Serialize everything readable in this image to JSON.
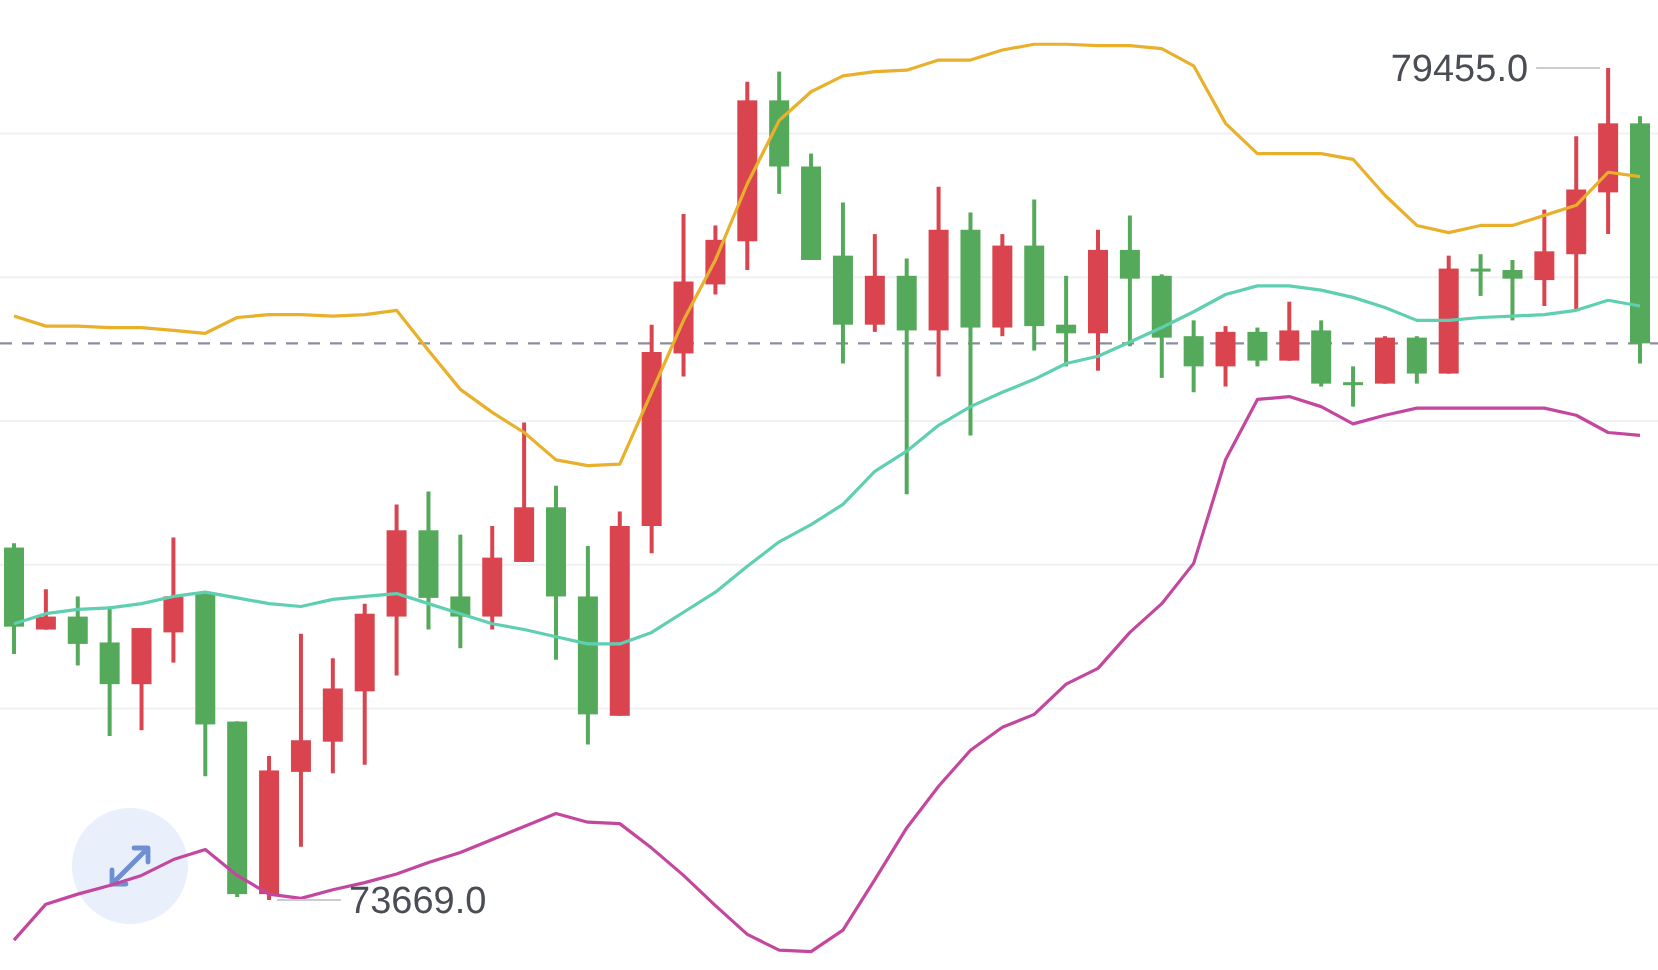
{
  "chart_data": {
    "type": "candlestick",
    "categories": [
      null,
      null,
      null,
      null,
      null,
      null,
      null,
      null,
      null,
      null,
      null,
      null,
      null,
      null,
      null,
      null,
      null,
      null,
      null,
      null,
      null,
      null,
      null,
      null,
      null,
      null,
      null,
      null,
      null,
      null,
      null,
      null,
      null,
      null,
      null,
      null,
      null,
      null,
      null,
      null,
      null,
      null,
      null,
      null,
      null,
      null,
      null,
      null,
      null,
      null,
      null,
      null
    ],
    "ohlc": [
      [
        76120,
        76150,
        75380,
        75570
      ],
      [
        75550,
        75830,
        75550,
        75640
      ],
      [
        75640,
        75780,
        75300,
        75450
      ],
      [
        75460,
        75710,
        74810,
        75170
      ],
      [
        75170,
        75560,
        74850,
        75560
      ],
      [
        75530,
        76190,
        75320,
        75780
      ],
      [
        75800,
        75800,
        74530,
        74890
      ],
      [
        74910,
        74910,
        73690,
        73710
      ],
      [
        73710,
        74670,
        73669,
        74570
      ],
      [
        74560,
        75520,
        74040,
        74780
      ],
      [
        74770,
        75350,
        74550,
        75140
      ],
      [
        75120,
        75730,
        74610,
        75660
      ],
      [
        75640,
        76420,
        75230,
        76240
      ],
      [
        76240,
        76510,
        75550,
        75770
      ],
      [
        75780,
        76210,
        75420,
        75640
      ],
      [
        75640,
        76270,
        75550,
        76050
      ],
      [
        76020,
        76990,
        76020,
        76400
      ],
      [
        76400,
        76550,
        75340,
        75780
      ],
      [
        75780,
        76130,
        74750,
        74960
      ],
      [
        74950,
        76370,
        74950,
        76270
      ],
      [
        76270,
        77670,
        76080,
        77480
      ],
      [
        77470,
        78440,
        77310,
        77970
      ],
      [
        77950,
        78360,
        77880,
        78260
      ],
      [
        78250,
        79360,
        78050,
        79230
      ],
      [
        79230,
        79430,
        78580,
        78770
      ],
      [
        78770,
        78860,
        78120,
        78120
      ],
      [
        78150,
        78520,
        77400,
        77670
      ],
      [
        77670,
        78300,
        77620,
        78010
      ],
      [
        78010,
        78130,
        76490,
        77630
      ],
      [
        77630,
        78630,
        77310,
        78330
      ],
      [
        78330,
        78450,
        76900,
        77650
      ],
      [
        77650,
        78300,
        77590,
        78220
      ],
      [
        78220,
        78540,
        77490,
        77660
      ],
      [
        77670,
        78010,
        77380,
        77610
      ],
      [
        77610,
        78330,
        77350,
        78190
      ],
      [
        78190,
        78430,
        77520,
        77990
      ],
      [
        78010,
        78020,
        77300,
        77580
      ],
      [
        77590,
        77700,
        77200,
        77380
      ],
      [
        77380,
        77660,
        77240,
        77620
      ],
      [
        77620,
        77650,
        77380,
        77420
      ],
      [
        77420,
        77830,
        77420,
        77630
      ],
      [
        77630,
        77700,
        77240,
        77260
      ],
      [
        77270,
        77380,
        77100,
        77260
      ],
      [
        77260,
        77590,
        77260,
        77580
      ],
      [
        77580,
        77590,
        77260,
        77330
      ],
      [
        77330,
        78150,
        77330,
        78060
      ],
      [
        78060,
        78160,
        77870,
        78040
      ],
      [
        78050,
        78120,
        77700,
        77990
      ],
      [
        77980,
        78470,
        77800,
        78180
      ],
      [
        78160,
        78980,
        77770,
        78610
      ],
      [
        78590,
        79455,
        78300,
        79070
      ],
      [
        79070,
        79120,
        77400,
        77540
      ]
    ],
    "colors": [
      "#55a95b",
      "#d9444f",
      "#55a95b",
      "#55a95b",
      "#d9444f",
      "#d9444f",
      "#55a95b",
      "#55a95b",
      "#d9444f",
      "#d9444f",
      "#d9444f",
      "#d9444f",
      "#d9444f",
      "#55a95b",
      "#55a95b",
      "#d9444f",
      "#d9444f",
      "#55a95b",
      "#55a95b",
      "#d9444f",
      "#d9444f",
      "#d9444f",
      "#d9444f",
      "#d9444f",
      "#55a95b",
      "#55a95b",
      "#55a95b",
      "#d9444f",
      "#55a95b",
      "#d9444f",
      "#55a95b",
      "#d9444f",
      "#55a95b",
      "#55a95b",
      "#d9444f",
      "#55a95b",
      "#55a95b",
      "#55a95b",
      "#d9444f",
      "#55a95b",
      "#d9444f",
      "#55a95b",
      "#55a95b",
      "#d9444f",
      "#55a95b",
      "#d9444f",
      "#55a95b",
      "#55a95b",
      "#d9444f",
      "#d9444f",
      "#d9444f",
      "#55a95b"
    ],
    "series": [
      {
        "type": "line",
        "color": "#e9b02c",
        "values": [
          77730,
          77660,
          77660,
          77650,
          77650,
          77630,
          77610,
          77720,
          77740,
          77740,
          77730,
          77740,
          77770,
          77490,
          77220,
          77060,
          76920,
          76730,
          76690,
          76700,
          77200,
          77700,
          78120,
          78650,
          79090,
          79290,
          79400,
          79430,
          79440,
          79510,
          79510,
          79580,
          79620,
          79620,
          79610,
          79610,
          79590,
          79470,
          79070,
          78860,
          78860,
          78860,
          78820,
          78570,
          78360,
          78310,
          78360,
          78360,
          78430,
          78500,
          78730,
          78700
        ]
      },
      {
        "type": "line",
        "color": "#5fcfb2",
        "values": [
          75590,
          75660,
          75690,
          75700,
          75730,
          75780,
          75810,
          75770,
          75730,
          75710,
          75760,
          75780,
          75800,
          75730,
          75660,
          75590,
          75550,
          75500,
          75450,
          75450,
          75530,
          75670,
          75810,
          75990,
          76160,
          76280,
          76420,
          76650,
          76790,
          76970,
          77100,
          77200,
          77290,
          77400,
          77450,
          77550,
          77650,
          77760,
          77880,
          77940,
          77940,
          77910,
          77860,
          77790,
          77700,
          77700,
          77720,
          77730,
          77740,
          77770,
          77840,
          77800
        ]
      },
      {
        "type": "line",
        "color": "#c4479f",
        "values": [
          73390,
          73640,
          73710,
          73770,
          73840,
          73950,
          74020,
          73840,
          73710,
          73680,
          73740,
          73790,
          73850,
          73930,
          74000,
          74090,
          74180,
          74270,
          74210,
          74200,
          74030,
          73840,
          73630,
          73430,
          73320,
          73310,
          73460,
          73810,
          74170,
          74460,
          74710,
          74870,
          74960,
          75170,
          75280,
          75530,
          75730,
          76010,
          76730,
          77150,
          77170,
          77100,
          76980,
          77040,
          77090,
          77090,
          77090,
          77090,
          77090,
          77040,
          76920,
          76900
        ]
      }
    ],
    "ref_lines": [
      {
        "axis": "y",
        "value": 77540,
        "color": "#8a8e9c",
        "line_style": "dashed"
      }
    ],
    "annotations": [
      "79455.0",
      "73669.0"
    ],
    "grid": true,
    "yticks": [
      {
        "value": 75000,
        "label": null
      },
      {
        "value": 76000,
        "label": null
      },
      {
        "value": 77000,
        "label": null
      },
      {
        "value": 78000,
        "label": null
      },
      {
        "value": 79000,
        "label": null
      }
    ],
    "tick_labels": false
  }
}
